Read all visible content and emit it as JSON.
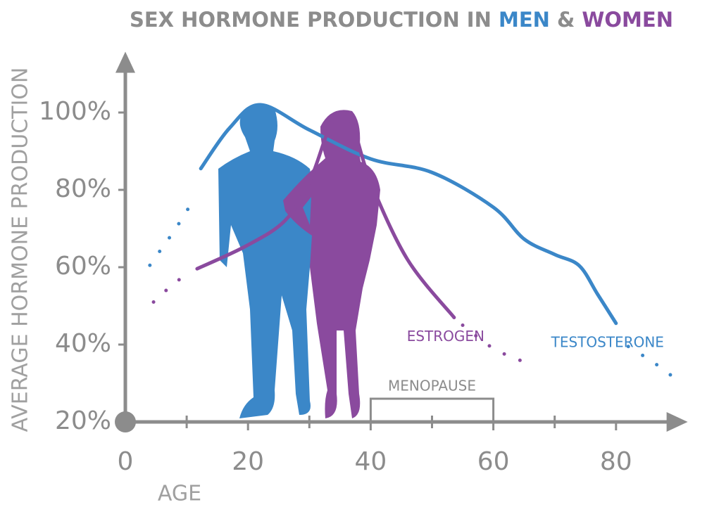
{
  "chart_data": {
    "type": "line",
    "title_parts": [
      {
        "text": "SEX HORMONE PRODUCTION IN ",
        "color": "#8c8c8c"
      },
      {
        "text": "MEN",
        "color": "#3b87c8"
      },
      {
        "text": " & ",
        "color": "#8c8c8c"
      },
      {
        "text": "WOMEN",
        "color": "#8a4a9e"
      }
    ],
    "y_label": "AVERAGE HORMONE PRODUCTION",
    "x_label": "AGE",
    "xlim": [
      0,
      91
    ],
    "ylim": [
      20,
      115
    ],
    "xticks": [
      0,
      20,
      40,
      60,
      80
    ],
    "minor_xticks": [
      10,
      30,
      50,
      70
    ],
    "yticks": [
      {
        "value": 20,
        "label": "20%"
      },
      {
        "value": 40,
        "label": "40%"
      },
      {
        "value": 60,
        "label": "60%"
      },
      {
        "value": 80,
        "label": "80%"
      },
      {
        "value": 100,
        "label": "100%"
      }
    ],
    "series": [
      {
        "name": "TESTOSTERONE",
        "color": "#3b87c8",
        "segments": [
          {
            "style": "dotted",
            "x": [
              4,
              6,
              8,
              10,
              11.5
            ],
            "values": [
              60.5,
              65,
              69.5,
              74.5,
              78.5
            ]
          },
          {
            "style": "solid",
            "x": [
              12.3,
              17,
              22,
              30,
              40,
              50,
              60,
              65,
              70,
              74,
              77,
              80
            ],
            "values": [
              85.5,
              96,
              102,
              95.5,
              88,
              84.5,
              75.5,
              67.3,
              63.3,
              60.4,
              53,
              45.5
            ]
          },
          {
            "style": "dotted",
            "x": [
              82,
              86,
              89
            ],
            "values": [
              39.5,
              35.5,
              32
            ]
          }
        ]
      },
      {
        "name": "ESTROGEN",
        "color": "#8a4a9e",
        "segments": [
          {
            "style": "dotted",
            "x": [
              4.6,
              7,
              9.2
            ],
            "values": [
              51,
              54.5,
              57.3
            ]
          },
          {
            "style": "solid",
            "x": [
              11.7,
              19.7,
              26,
              30,
              33,
              35,
              37,
              40,
              46,
              53.6
            ],
            "values": [
              59.6,
              65.5,
              72,
              82,
              95,
              100,
              97,
              82,
              62,
              47
            ]
          },
          {
            "style": "dotted",
            "x": [
              55,
              60,
              65
            ],
            "values": [
              45,
              39,
              35.5
            ]
          }
        ]
      }
    ],
    "annotations": [
      {
        "label": "MENOPAUSE",
        "x": [
          40,
          60
        ]
      }
    ]
  }
}
